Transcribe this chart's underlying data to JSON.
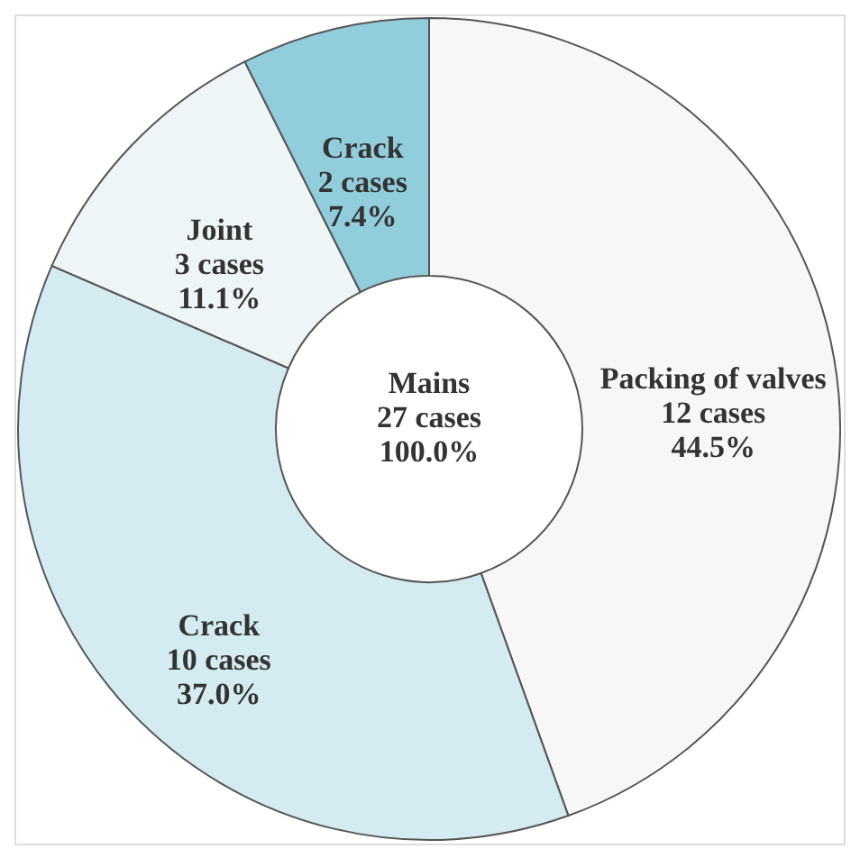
{
  "chart_data": {
    "type": "donut",
    "categories": [
      "Packing of valves",
      "Crack",
      "Joint",
      "Crack"
    ],
    "values": [
      44.5,
      37.0,
      11.1,
      7.4
    ],
    "value_labels": [
      "12 cases\n44.5%",
      "10 cases\n37.0%",
      "3 cases\n11.1%",
      "2 cases\n7.4%"
    ],
    "colors": [
      "#f7f7f7",
      "#d3ebf1",
      "#eef5f7",
      "#92cddc"
    ],
    "annotations": [
      "Mains\n27 cases\n100.0%"
    ],
    "legend": false
  }
}
